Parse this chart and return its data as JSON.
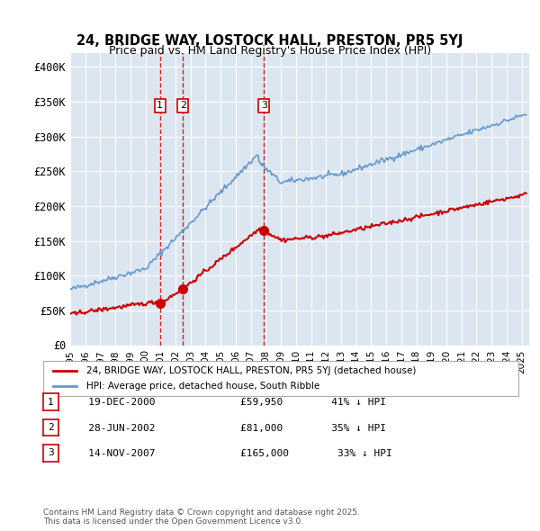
{
  "title": "24, BRIDGE WAY, LOSTOCK HALL, PRESTON, PR5 5YJ",
  "subtitle": "Price paid vs. HM Land Registry's House Price Index (HPI)",
  "ylabel_ticks": [
    "£0",
    "£50K",
    "£100K",
    "£150K",
    "£200K",
    "£250K",
    "£300K",
    "£350K",
    "£400K"
  ],
  "ytick_values": [
    0,
    50000,
    100000,
    150000,
    200000,
    250000,
    300000,
    350000,
    400000
  ],
  "ylim": [
    0,
    420000
  ],
  "xlim_start": 1995.0,
  "xlim_end": 2025.5,
  "background_color": "#dce6f1",
  "plot_bg_color": "#dce6f1",
  "grid_color": "#ffffff",
  "transaction_color": "#cc0000",
  "hpi_color": "#6699cc",
  "transactions": [
    {
      "year": 2000.97,
      "price": 59950,
      "label": "1"
    },
    {
      "year": 2002.49,
      "price": 81000,
      "label": "2"
    },
    {
      "year": 2007.87,
      "price": 165000,
      "label": "3"
    }
  ],
  "vline_dates": [
    2000.97,
    2002.49,
    2007.87
  ],
  "legend_house_label": "24, BRIDGE WAY, LOSTOCK HALL, PRESTON, PR5 5YJ (detached house)",
  "legend_hpi_label": "HPI: Average price, detached house, South Ribble",
  "table_rows": [
    {
      "num": "1",
      "date": "19-DEC-2000",
      "price": "£59,950",
      "pct": "41% ↓ HPI"
    },
    {
      "num": "2",
      "date": "28-JUN-2002",
      "price": "£81,000",
      "pct": "35% ↓ HPI"
    },
    {
      "num": "3",
      "date": "14-NOV-2007",
      "price": "£165,000",
      "pct": "33% ↓ HPI"
    }
  ],
  "footer": "Contains HM Land Registry data © Crown copyright and database right 2025.\nThis data is licensed under the Open Government Licence v3.0.",
  "xtick_labels": [
    "1995",
    "1996",
    "1997",
    "1998",
    "1999",
    "2000",
    "2001",
    "2002",
    "2003",
    "2004",
    "2005",
    "2006",
    "2007",
    "2008",
    "2009",
    "2010",
    "2011",
    "2012",
    "2013",
    "2014",
    "2015",
    "2016",
    "2017",
    "2018",
    "2019",
    "2020",
    "2021",
    "2022",
    "2023",
    "2024",
    "2025"
  ]
}
